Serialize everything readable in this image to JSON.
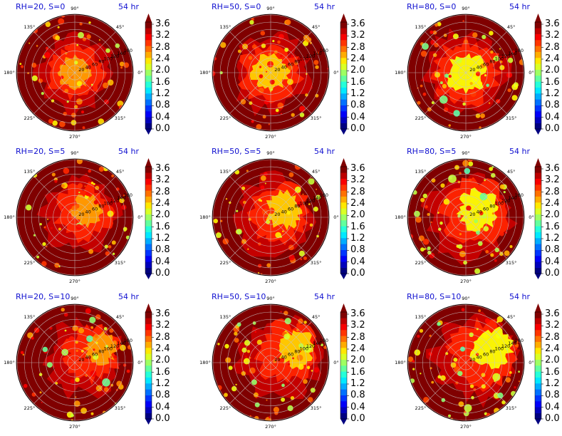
{
  "figure": {
    "panels": [
      {
        "title": "RH=20, S=0",
        "time": "54 hr"
      },
      {
        "title": "RH=50, S=0",
        "time": "54 hr"
      },
      {
        "title": "RH=80, S=0",
        "time": "54 hr"
      },
      {
        "title": "RH=20, S=5",
        "time": "54 hr"
      },
      {
        "title": "RH=50, S=5",
        "time": "54 hr"
      },
      {
        "title": "RH=80, S=5",
        "time": "54 hr"
      },
      {
        "title": "RH=20, S=10",
        "time": "54 hr"
      },
      {
        "title": "RH=50, S=10",
        "time": "54 hr"
      },
      {
        "title": "RH=80, S=10",
        "time": "54 hr"
      }
    ],
    "angle_labels": [
      "90°",
      "45°",
      "0°",
      "315°",
      "270°",
      "225°",
      "180°",
      "135°"
    ],
    "radial_labels": [
      "20",
      "40",
      "60",
      "80",
      "100",
      "120",
      "140",
      "160"
    ],
    "colorbar_ticks": [
      "0.0",
      "0.4",
      "0.8",
      "1.2",
      "1.6",
      "2.0",
      "2.4",
      "2.8",
      "3.2",
      "3.6"
    ]
  },
  "chart_data": {
    "type": "heatmap",
    "projection": "polar",
    "grid": true,
    "layout": "3x3",
    "angle_ticks_deg": [
      0,
      45,
      90,
      135,
      180,
      225,
      270,
      315
    ],
    "radial_ticks": [
      20,
      40,
      60,
      80,
      100,
      120,
      140,
      160
    ],
    "colorbar": {
      "min": 0.0,
      "max": 3.6,
      "levels": [
        0.0,
        0.4,
        0.8,
        1.2,
        1.6,
        2.0,
        2.4,
        2.8,
        3.2,
        3.6
      ],
      "colormap": "jet",
      "extend": "both"
    },
    "colors": {
      "title_text": "#1010d0",
      "field_high": "#800000",
      "field_mid": "#ff5000",
      "field_low": "#00ffff"
    }
  }
}
